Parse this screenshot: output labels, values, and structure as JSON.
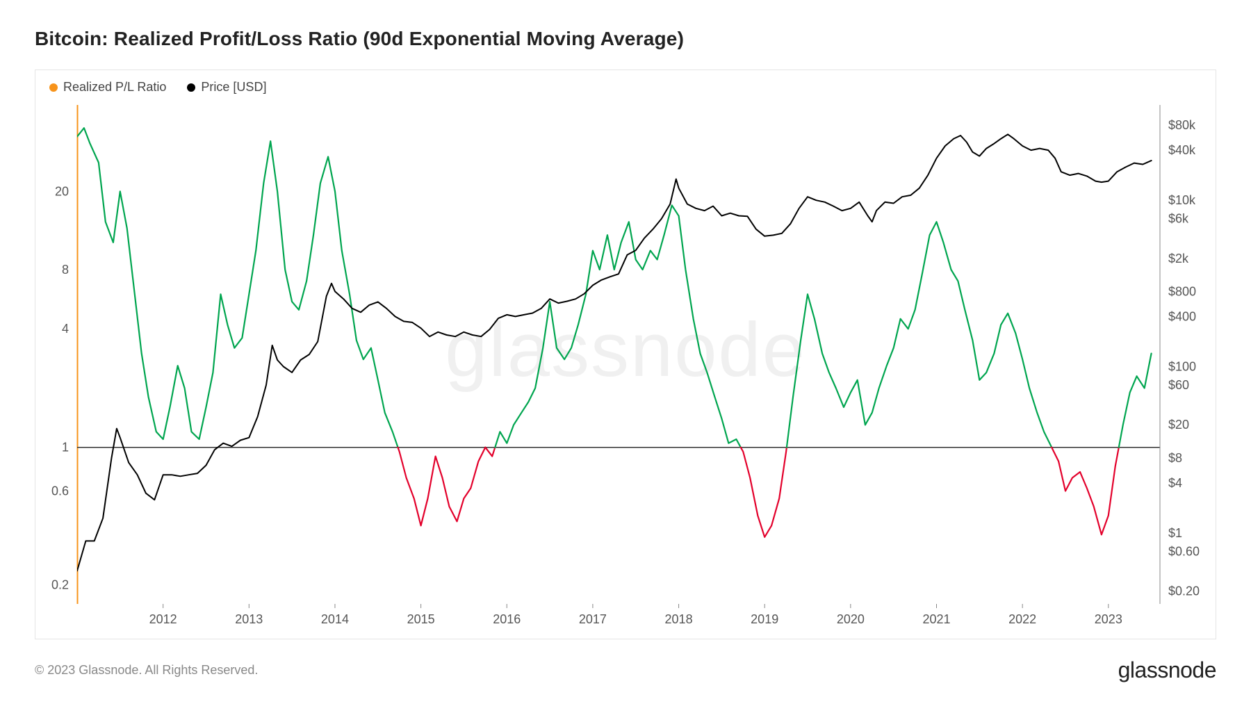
{
  "title": "Bitcoin: Realized Profit/Loss Ratio (90d Exponential Moving Average)",
  "copyright": "© 2023 Glassnode. All Rights Reserved.",
  "brand": "glassnode",
  "watermark": "glassnode",
  "legend": {
    "series1": {
      "label": "Realized P/L Ratio",
      "color": "#f7931a"
    },
    "series2": {
      "label": "Price [USD]",
      "color": "#000000"
    }
  },
  "chart": {
    "type": "dual-axis-line-log",
    "background_color": "#ffffff",
    "border_color": "#e5e5e5",
    "grid_color": "#e8e8e8",
    "left_accent_color": "#f7931a",
    "ratio_above_color": "#00a54f",
    "ratio_below_color": "#e3002b",
    "price_color": "#000000",
    "threshold_color": "#333333",
    "threshold_value": 1,
    "line_width_ratio": 2.2,
    "line_width_price": 2.0,
    "x": {
      "domain": [
        2011.0,
        2023.6
      ],
      "ticks": [
        2012,
        2013,
        2014,
        2015,
        2016,
        2017,
        2018,
        2019,
        2020,
        2021,
        2022,
        2023
      ],
      "tick_labels": [
        "2012",
        "2013",
        "2014",
        "2015",
        "2016",
        "2017",
        "2018",
        "2019",
        "2020",
        "2021",
        "2022",
        "2023"
      ],
      "label_fontsize": 18,
      "label_color": "#555555"
    },
    "y_left": {
      "scale": "log",
      "domain": [
        0.16,
        55
      ],
      "ticks": [
        0.2,
        0.6,
        1,
        4,
        8,
        20
      ],
      "tick_labels": [
        "0.2",
        "0.6",
        "1",
        "4",
        "8",
        "20"
      ],
      "label_fontsize": 18,
      "label_color": "#555555"
    },
    "y_right": {
      "scale": "log",
      "domain": [
        0.14,
        140000
      ],
      "ticks": [
        0.2,
        0.6,
        1,
        4,
        8,
        20,
        60,
        100,
        400,
        800,
        2000,
        6000,
        10000,
        40000,
        80000
      ],
      "tick_labels": [
        "$0.20",
        "$0.60",
        "$1",
        "$4",
        "$8",
        "$20",
        "$60",
        "$100",
        "$400",
        "$800",
        "$2k",
        "$6k",
        "$10k",
        "$40k",
        "$80k"
      ],
      "label_fontsize": 18,
      "label_color": "#555555"
    },
    "ratio_series": [
      [
        2011.0,
        38
      ],
      [
        2011.08,
        42
      ],
      [
        2011.15,
        35
      ],
      [
        2011.25,
        28
      ],
      [
        2011.33,
        14
      ],
      [
        2011.42,
        11
      ],
      [
        2011.5,
        20
      ],
      [
        2011.58,
        13
      ],
      [
        2011.67,
        6
      ],
      [
        2011.75,
        3
      ],
      [
        2011.83,
        1.8
      ],
      [
        2011.92,
        1.2
      ],
      [
        2012.0,
        1.1
      ],
      [
        2012.08,
        1.6
      ],
      [
        2012.17,
        2.6
      ],
      [
        2012.25,
        2.0
      ],
      [
        2012.33,
        1.2
      ],
      [
        2012.42,
        1.1
      ],
      [
        2012.5,
        1.6
      ],
      [
        2012.58,
        2.4
      ],
      [
        2012.67,
        6
      ],
      [
        2012.75,
        4.2
      ],
      [
        2012.83,
        3.2
      ],
      [
        2012.92,
        3.6
      ],
      [
        2013.0,
        6
      ],
      [
        2013.08,
        10
      ],
      [
        2013.17,
        22
      ],
      [
        2013.25,
        36
      ],
      [
        2013.33,
        20
      ],
      [
        2013.42,
        8
      ],
      [
        2013.5,
        5.5
      ],
      [
        2013.58,
        5
      ],
      [
        2013.67,
        7
      ],
      [
        2013.75,
        12
      ],
      [
        2013.83,
        22
      ],
      [
        2013.92,
        30
      ],
      [
        2014.0,
        20
      ],
      [
        2014.08,
        10
      ],
      [
        2014.17,
        6
      ],
      [
        2014.25,
        3.5
      ],
      [
        2014.33,
        2.8
      ],
      [
        2014.42,
        3.2
      ],
      [
        2014.5,
        2.2
      ],
      [
        2014.58,
        1.5
      ],
      [
        2014.67,
        1.2
      ],
      [
        2014.75,
        0.95
      ],
      [
        2014.83,
        0.7
      ],
      [
        2014.92,
        0.55
      ],
      [
        2015.0,
        0.4
      ],
      [
        2015.08,
        0.55
      ],
      [
        2015.17,
        0.9
      ],
      [
        2015.25,
        0.7
      ],
      [
        2015.33,
        0.5
      ],
      [
        2015.42,
        0.42
      ],
      [
        2015.5,
        0.55
      ],
      [
        2015.58,
        0.62
      ],
      [
        2015.67,
        0.85
      ],
      [
        2015.75,
        1.0
      ],
      [
        2015.83,
        0.9
      ],
      [
        2015.92,
        1.2
      ],
      [
        2016.0,
        1.05
      ],
      [
        2016.08,
        1.3
      ],
      [
        2016.17,
        1.5
      ],
      [
        2016.25,
        1.7
      ],
      [
        2016.33,
        2.0
      ],
      [
        2016.42,
        3.2
      ],
      [
        2016.5,
        5.5
      ],
      [
        2016.58,
        3.2
      ],
      [
        2016.67,
        2.8
      ],
      [
        2016.75,
        3.2
      ],
      [
        2016.83,
        4.2
      ],
      [
        2016.92,
        6.0
      ],
      [
        2017.0,
        10
      ],
      [
        2017.08,
        8
      ],
      [
        2017.17,
        12
      ],
      [
        2017.25,
        8
      ],
      [
        2017.33,
        11
      ],
      [
        2017.42,
        14
      ],
      [
        2017.5,
        9
      ],
      [
        2017.58,
        8
      ],
      [
        2017.67,
        10
      ],
      [
        2017.75,
        9
      ],
      [
        2017.83,
        12
      ],
      [
        2017.92,
        17
      ],
      [
        2018.0,
        15
      ],
      [
        2018.08,
        8
      ],
      [
        2018.17,
        4.5
      ],
      [
        2018.25,
        3.0
      ],
      [
        2018.33,
        2.4
      ],
      [
        2018.42,
        1.8
      ],
      [
        2018.5,
        1.4
      ],
      [
        2018.58,
        1.05
      ],
      [
        2018.67,
        1.1
      ],
      [
        2018.75,
        0.95
      ],
      [
        2018.83,
        0.7
      ],
      [
        2018.92,
        0.45
      ],
      [
        2019.0,
        0.35
      ],
      [
        2019.08,
        0.4
      ],
      [
        2019.17,
        0.55
      ],
      [
        2019.25,
        0.95
      ],
      [
        2019.33,
        1.8
      ],
      [
        2019.42,
        3.5
      ],
      [
        2019.5,
        6.0
      ],
      [
        2019.58,
        4.5
      ],
      [
        2019.67,
        3.0
      ],
      [
        2019.75,
        2.4
      ],
      [
        2019.83,
        2.0
      ],
      [
        2019.92,
        1.6
      ],
      [
        2020.0,
        1.9
      ],
      [
        2020.08,
        2.2
      ],
      [
        2020.17,
        1.3
      ],
      [
        2020.25,
        1.5
      ],
      [
        2020.33,
        2.0
      ],
      [
        2020.42,
        2.6
      ],
      [
        2020.5,
        3.2
      ],
      [
        2020.58,
        4.5
      ],
      [
        2020.67,
        4.0
      ],
      [
        2020.75,
        5.0
      ],
      [
        2020.83,
        7.5
      ],
      [
        2020.92,
        12
      ],
      [
        2021.0,
        14
      ],
      [
        2021.08,
        11
      ],
      [
        2021.17,
        8
      ],
      [
        2021.25,
        7
      ],
      [
        2021.33,
        5
      ],
      [
        2021.42,
        3.5
      ],
      [
        2021.5,
        2.2
      ],
      [
        2021.58,
        2.4
      ],
      [
        2021.67,
        3.0
      ],
      [
        2021.75,
        4.2
      ],
      [
        2021.83,
        4.8
      ],
      [
        2021.92,
        3.8
      ],
      [
        2022.0,
        2.8
      ],
      [
        2022.08,
        2.0
      ],
      [
        2022.17,
        1.5
      ],
      [
        2022.25,
        1.2
      ],
      [
        2022.33,
        1.02
      ],
      [
        2022.42,
        0.85
      ],
      [
        2022.5,
        0.6
      ],
      [
        2022.58,
        0.7
      ],
      [
        2022.67,
        0.75
      ],
      [
        2022.75,
        0.62
      ],
      [
        2022.83,
        0.5
      ],
      [
        2022.92,
        0.36
      ],
      [
        2023.0,
        0.45
      ],
      [
        2023.08,
        0.8
      ],
      [
        2023.17,
        1.3
      ],
      [
        2023.25,
        1.9
      ],
      [
        2023.33,
        2.3
      ],
      [
        2023.42,
        2.0
      ],
      [
        2023.5,
        3.0
      ]
    ],
    "price_series": [
      [
        2011.0,
        0.35
      ],
      [
        2011.1,
        0.8
      ],
      [
        2011.2,
        0.8
      ],
      [
        2011.3,
        1.5
      ],
      [
        2011.4,
        8
      ],
      [
        2011.46,
        18
      ],
      [
        2011.5,
        14
      ],
      [
        2011.6,
        7
      ],
      [
        2011.7,
        5
      ],
      [
        2011.8,
        3
      ],
      [
        2011.9,
        2.5
      ],
      [
        2012.0,
        5
      ],
      [
        2012.1,
        5
      ],
      [
        2012.2,
        4.8
      ],
      [
        2012.3,
        5
      ],
      [
        2012.4,
        5.2
      ],
      [
        2012.5,
        6.5
      ],
      [
        2012.6,
        10
      ],
      [
        2012.7,
        12
      ],
      [
        2012.8,
        11
      ],
      [
        2012.9,
        13
      ],
      [
        2013.0,
        14
      ],
      [
        2013.1,
        25
      ],
      [
        2013.2,
        60
      ],
      [
        2013.27,
        180
      ],
      [
        2013.33,
        120
      ],
      [
        2013.4,
        100
      ],
      [
        2013.5,
        85
      ],
      [
        2013.6,
        120
      ],
      [
        2013.7,
        140
      ],
      [
        2013.8,
        200
      ],
      [
        2013.9,
        700
      ],
      [
        2013.96,
        1000
      ],
      [
        2014.0,
        800
      ],
      [
        2014.1,
        650
      ],
      [
        2014.2,
        500
      ],
      [
        2014.3,
        450
      ],
      [
        2014.4,
        550
      ],
      [
        2014.5,
        600
      ],
      [
        2014.6,
        500
      ],
      [
        2014.7,
        400
      ],
      [
        2014.8,
        350
      ],
      [
        2014.9,
        340
      ],
      [
        2015.0,
        290
      ],
      [
        2015.1,
        230
      ],
      [
        2015.2,
        260
      ],
      [
        2015.3,
        240
      ],
      [
        2015.4,
        230
      ],
      [
        2015.5,
        260
      ],
      [
        2015.6,
        240
      ],
      [
        2015.7,
        230
      ],
      [
        2015.8,
        280
      ],
      [
        2015.9,
        380
      ],
      [
        2016.0,
        420
      ],
      [
        2016.1,
        400
      ],
      [
        2016.2,
        420
      ],
      [
        2016.3,
        440
      ],
      [
        2016.4,
        500
      ],
      [
        2016.5,
        650
      ],
      [
        2016.6,
        580
      ],
      [
        2016.7,
        610
      ],
      [
        2016.8,
        650
      ],
      [
        2016.9,
        750
      ],
      [
        2017.0,
        950
      ],
      [
        2017.1,
        1100
      ],
      [
        2017.2,
        1200
      ],
      [
        2017.3,
        1300
      ],
      [
        2017.4,
        2200
      ],
      [
        2017.5,
        2500
      ],
      [
        2017.6,
        3500
      ],
      [
        2017.7,
        4500
      ],
      [
        2017.8,
        6000
      ],
      [
        2017.9,
        9000
      ],
      [
        2017.97,
        18000
      ],
      [
        2018.0,
        14000
      ],
      [
        2018.1,
        9000
      ],
      [
        2018.2,
        8000
      ],
      [
        2018.3,
        7500
      ],
      [
        2018.4,
        8500
      ],
      [
        2018.5,
        6500
      ],
      [
        2018.6,
        7000
      ],
      [
        2018.7,
        6500
      ],
      [
        2018.8,
        6400
      ],
      [
        2018.9,
        4500
      ],
      [
        2019.0,
        3700
      ],
      [
        2019.1,
        3800
      ],
      [
        2019.2,
        4000
      ],
      [
        2019.3,
        5200
      ],
      [
        2019.4,
        8000
      ],
      [
        2019.5,
        11000
      ],
      [
        2019.6,
        10000
      ],
      [
        2019.7,
        9500
      ],
      [
        2019.8,
        8500
      ],
      [
        2019.9,
        7500
      ],
      [
        2020.0,
        8000
      ],
      [
        2020.1,
        9500
      ],
      [
        2020.2,
        6500
      ],
      [
        2020.25,
        5500
      ],
      [
        2020.3,
        7500
      ],
      [
        2020.4,
        9500
      ],
      [
        2020.5,
        9200
      ],
      [
        2020.6,
        11000
      ],
      [
        2020.7,
        11500
      ],
      [
        2020.8,
        14000
      ],
      [
        2020.9,
        20000
      ],
      [
        2021.0,
        32000
      ],
      [
        2021.1,
        45000
      ],
      [
        2021.2,
        55000
      ],
      [
        2021.28,
        60000
      ],
      [
        2021.35,
        50000
      ],
      [
        2021.42,
        38000
      ],
      [
        2021.5,
        34000
      ],
      [
        2021.58,
        42000
      ],
      [
        2021.67,
        48000
      ],
      [
        2021.75,
        55000
      ],
      [
        2021.83,
        62000
      ],
      [
        2021.9,
        55000
      ],
      [
        2022.0,
        45000
      ],
      [
        2022.1,
        40000
      ],
      [
        2022.2,
        42000
      ],
      [
        2022.3,
        40000
      ],
      [
        2022.38,
        32000
      ],
      [
        2022.45,
        22000
      ],
      [
        2022.55,
        20000
      ],
      [
        2022.65,
        21000
      ],
      [
        2022.75,
        19500
      ],
      [
        2022.85,
        17000
      ],
      [
        2022.92,
        16500
      ],
      [
        2023.0,
        17000
      ],
      [
        2023.1,
        22000
      ],
      [
        2023.2,
        25000
      ],
      [
        2023.3,
        28000
      ],
      [
        2023.4,
        27000
      ],
      [
        2023.5,
        30000
      ]
    ]
  }
}
